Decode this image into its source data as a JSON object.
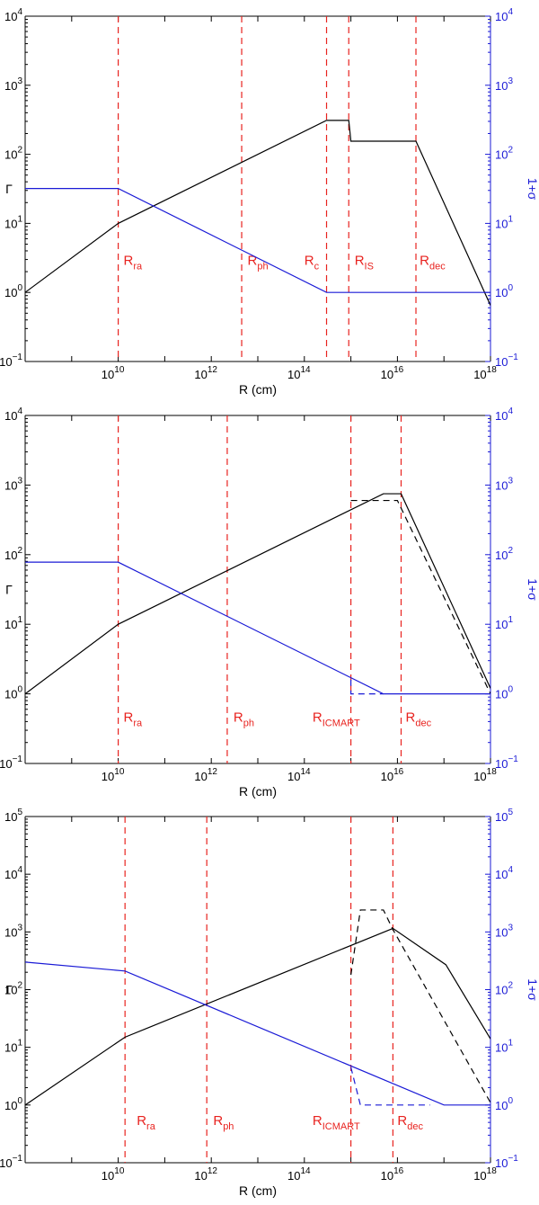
{
  "colors": {
    "gamma": "#000000",
    "sigma": "#1a1ad6",
    "marker": "#e8231f",
    "axis": "#000000"
  },
  "chart_data": [
    {
      "type": "line",
      "xlabel": "R (cm)",
      "ylabel_left": "Γ",
      "ylabel_right": "1+σ",
      "x_scale": "log",
      "y_scale": "log",
      "xlim": [
        100000000.0,
        1e+18
      ],
      "ylim": [
        0.1,
        10000
      ],
      "x_ticks": [
        {
          "value": 10000000000.0,
          "base": "10",
          "exp": "10"
        },
        {
          "value": 1000000000000.0,
          "base": "10",
          "exp": "12"
        },
        {
          "value": 100000000000000.0,
          "base": "10",
          "exp": "14"
        },
        {
          "value": 1e+16,
          "base": "10",
          "exp": "16"
        },
        {
          "value": 1e+18,
          "base": "10",
          "exp": "18"
        }
      ],
      "y_ticks": [
        {
          "value": 0.1,
          "base": "10",
          "exp": "−1"
        },
        {
          "value": 1,
          "base": "10",
          "exp": "0"
        },
        {
          "value": 10,
          "base": "10",
          "exp": "1"
        },
        {
          "value": 100,
          "base": "10",
          "exp": "2"
        },
        {
          "value": 1000,
          "base": "10",
          "exp": "3"
        },
        {
          "value": 10000,
          "base": "10",
          "exp": "4"
        }
      ],
      "markers": [
        {
          "x": 10000000000.0,
          "main": "R",
          "sub": "ra",
          "label_x": 13000000000.0
        },
        {
          "x": 4500000000000.0,
          "main": "R",
          "sub": "ph",
          "label_x": 6000000000000.0
        },
        {
          "x": 300000000000000.0,
          "main": "R",
          "sub": "c",
          "label_x": 100000000000000.0
        },
        {
          "x": 900000000000000.0,
          "main": "R",
          "sub": "IS",
          "label_x": 1200000000000000.0
        },
        {
          "x": 2.5e+16,
          "main": "R",
          "sub": "dec",
          "label_x": 3e+16
        }
      ],
      "label_y": 2.5,
      "series": [
        {
          "axis": "left",
          "dashed": false,
          "color": "gamma",
          "x": [
            100000000.0,
            10000000000.0,
            300000000000000.0,
            900000000000000.0,
            1000000000000000.0,
            2.5e+16,
            1e+18
          ],
          "y": [
            1,
            10,
            310,
            310,
            155,
            155,
            0.65
          ]
        },
        {
          "axis": "right",
          "dashed": false,
          "color": "sigma",
          "x": [
            100000000.0,
            10000000000.0,
            300000000000000.0,
            1e+18
          ],
          "y": [
            32,
            32,
            1,
            1
          ]
        }
      ]
    },
    {
      "type": "line",
      "xlabel": "R (cm)",
      "ylabel_left": "Γ",
      "ylabel_right": "1+σ",
      "x_scale": "log",
      "y_scale": "log",
      "xlim": [
        100000000.0,
        1e+18
      ],
      "ylim": [
        0.1,
        10000
      ],
      "x_ticks": [
        {
          "value": 10000000000.0,
          "base": "10",
          "exp": "10"
        },
        {
          "value": 1000000000000.0,
          "base": "10",
          "exp": "12"
        },
        {
          "value": 100000000000000.0,
          "base": "10",
          "exp": "14"
        },
        {
          "value": 1e+16,
          "base": "10",
          "exp": "16"
        },
        {
          "value": 1e+18,
          "base": "10",
          "exp": "18"
        }
      ],
      "y_ticks": [
        {
          "value": 0.1,
          "base": "10",
          "exp": "−1"
        },
        {
          "value": 1,
          "base": "10",
          "exp": "0"
        },
        {
          "value": 10,
          "base": "10",
          "exp": "1"
        },
        {
          "value": 100,
          "base": "10",
          "exp": "2"
        },
        {
          "value": 1000,
          "base": "10",
          "exp": "3"
        },
        {
          "value": 10000,
          "base": "10",
          "exp": "4"
        }
      ],
      "markers": [
        {
          "x": 10000000000.0,
          "main": "R",
          "sub": "ra",
          "label_x": 13000000000.0
        },
        {
          "x": 2200000000000.0,
          "main": "R",
          "sub": "ph",
          "label_x": 3000000000000.0
        },
        {
          "x": 1000000000000000.0,
          "main": "R",
          "sub": "ICMART",
          "label_x": 150000000000000.0
        },
        {
          "x": 1.2e+16,
          "main": "R",
          "sub": "dec",
          "label_x": 1.5e+16
        }
      ],
      "label_y": 0.4,
      "series": [
        {
          "axis": "left",
          "dashed": false,
          "color": "gamma",
          "x": [
            100000000.0,
            10000000000.0,
            5000000000000000.0,
            1.2e+16,
            1e+18
          ],
          "y": [
            1,
            10,
            750,
            750,
            1.2
          ]
        },
        {
          "axis": "left",
          "dashed": true,
          "color": "gamma",
          "x": [
            1000000000000000.0,
            1e+16,
            1e+18
          ],
          "y": [
            600,
            600,
            1
          ]
        },
        {
          "axis": "right",
          "dashed": false,
          "color": "sigma",
          "x": [
            100000000.0,
            10000000000.0,
            5000000000000000.0,
            1e+18
          ],
          "y": [
            78,
            78,
            1,
            1
          ]
        },
        {
          "axis": "right",
          "dashed": true,
          "color": "sigma",
          "x": [
            1000000000000000.0,
            1000000000000000.0,
            5000000000000000.0
          ],
          "y": [
            1.6,
            1,
            1
          ]
        }
      ]
    },
    {
      "type": "line",
      "xlabel": "R (cm)",
      "ylabel_left": "Γ",
      "ylabel_right": "1+σ",
      "x_scale": "log",
      "y_scale": "log",
      "xlim": [
        100000000.0,
        1e+18
      ],
      "ylim": [
        0.1,
        100000
      ],
      "x_ticks": [
        {
          "value": 10000000000.0,
          "base": "10",
          "exp": "10"
        },
        {
          "value": 1000000000000.0,
          "base": "10",
          "exp": "12"
        },
        {
          "value": 100000000000000.0,
          "base": "10",
          "exp": "14"
        },
        {
          "value": 1e+16,
          "base": "10",
          "exp": "16"
        },
        {
          "value": 1e+18,
          "base": "10",
          "exp": "18"
        }
      ],
      "y_ticks": [
        {
          "value": 0.1,
          "base": "10",
          "exp": "−1"
        },
        {
          "value": 1,
          "base": "10",
          "exp": "0"
        },
        {
          "value": 10,
          "base": "10",
          "exp": "1"
        },
        {
          "value": 100,
          "base": "10",
          "exp": "2"
        },
        {
          "value": 1000,
          "base": "10",
          "exp": "3"
        },
        {
          "value": 10000,
          "base": "10",
          "exp": "4"
        },
        {
          "value": 100000,
          "base": "10",
          "exp": "5"
        }
      ],
      "markers": [
        {
          "x": 14000000000.0,
          "main": "R",
          "sub": "ra",
          "label_x": 25000000000.0
        },
        {
          "x": 800000000000.0,
          "main": "R",
          "sub": "ph",
          "label_x": 1100000000000.0
        },
        {
          "x": 1000000000000000.0,
          "main": "R",
          "sub": "ICMART",
          "label_x": 150000000000000.0
        },
        {
          "x": 8000000000000000.0,
          "main": "R",
          "sub": "dec",
          "label_x": 1e+16
        }
      ],
      "label_y": 0.45,
      "series": [
        {
          "axis": "left",
          "dashed": false,
          "color": "gamma",
          "x": [
            100000000.0,
            14000000000.0,
            8000000000000000.0,
            1.1e+17,
            1e+18
          ],
          "y": [
            1,
            15,
            1150,
            270,
            14
          ]
        },
        {
          "axis": "left",
          "dashed": true,
          "color": "gamma",
          "x": [
            1000000000000000.0,
            1600000000000000.0,
            5000000000000000.0,
            8000000000000000.0,
            1e+18
          ],
          "y": [
            180,
            2400,
            2400,
            1100,
            1.1
          ]
        },
        {
          "axis": "right",
          "dashed": false,
          "color": "sigma",
          "x": [
            100000000.0,
            14000000000.0,
            1e+17,
            1e+18
          ],
          "y": [
            300,
            210,
            1,
            1
          ]
        },
        {
          "axis": "right",
          "dashed": true,
          "color": "sigma",
          "x": [
            1000000000000000.0,
            1600000000000000.0,
            5e+16
          ],
          "y": [
            4.5,
            1,
            1
          ]
        }
      ]
    }
  ]
}
